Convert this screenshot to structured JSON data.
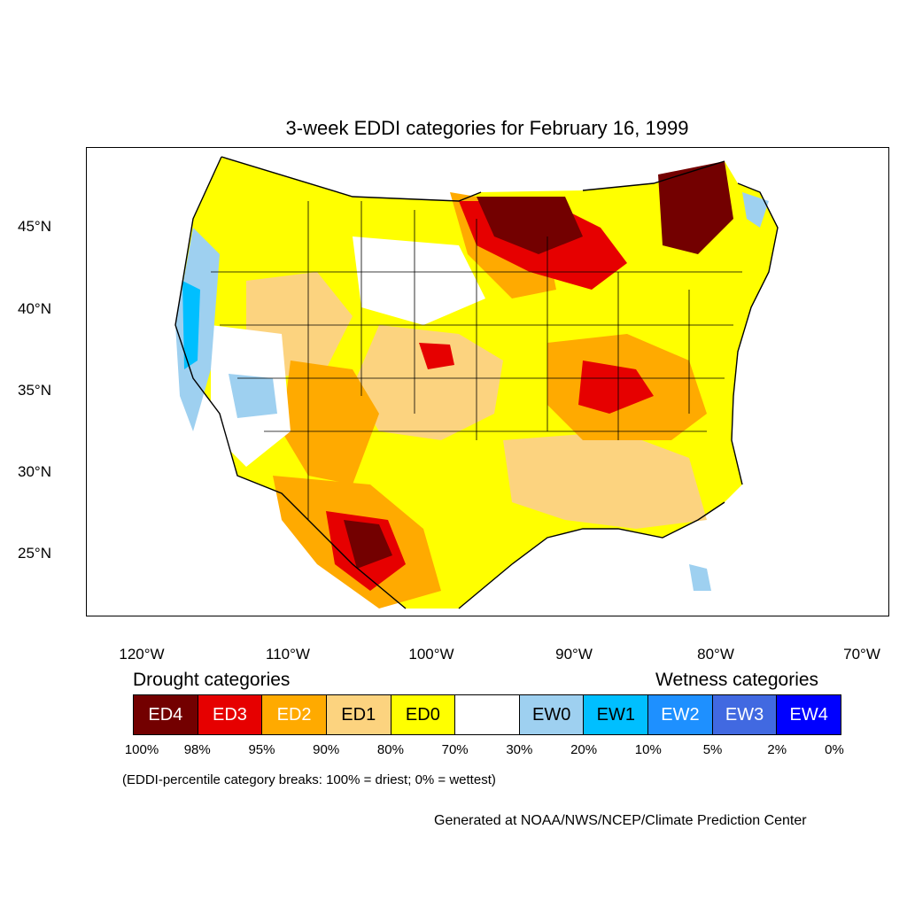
{
  "title": "3-week EDDI categories for February 16, 1999",
  "lat_labels": [
    "45°N",
    "40°N",
    "35°N",
    "30°N",
    "25°N"
  ],
  "lon_labels": [
    "120°W",
    "110°W",
    "100°W",
    "90°W",
    "80°W",
    "70°W"
  ],
  "legend": {
    "drought_title": "Drought categories",
    "wetness_title": "Wetness categories",
    "categories": [
      {
        "label": "ED4",
        "color": "#730000",
        "text_color": "#ffffff"
      },
      {
        "label": "ED3",
        "color": "#e60000",
        "text_color": "#ffffff"
      },
      {
        "label": "ED2",
        "color": "#ffaa00",
        "text_color": "#ffffff"
      },
      {
        "label": "ED1",
        "color": "#fcd37f",
        "text_color": "#000000"
      },
      {
        "label": "ED0",
        "color": "#ffff00",
        "text_color": "#000000"
      },
      {
        "label": "",
        "color": "#ffffff",
        "text_color": "#000000"
      },
      {
        "label": "EW0",
        "color": "#9ed0f0",
        "text_color": "#000000"
      },
      {
        "label": "EW1",
        "color": "#00bfff",
        "text_color": "#000000"
      },
      {
        "label": "EW2",
        "color": "#1e90ff",
        "text_color": "#ffffff"
      },
      {
        "label": "EW3",
        "color": "#4169e1",
        "text_color": "#ffffff"
      },
      {
        "label": "EW4",
        "color": "#0000ff",
        "text_color": "#ffffff"
      }
    ],
    "breaks": [
      "100%",
      "98%",
      "95%",
      "90%",
      "80%",
      "70%",
      "30%",
      "20%",
      "10%",
      "5%",
      "2%",
      "0%"
    ]
  },
  "note": "(EDDI-percentile category breaks: 100% = driest; 0% = wettest)",
  "credit": "Generated at NOAA/NWS/NCEP/Climate Prediction Center"
}
